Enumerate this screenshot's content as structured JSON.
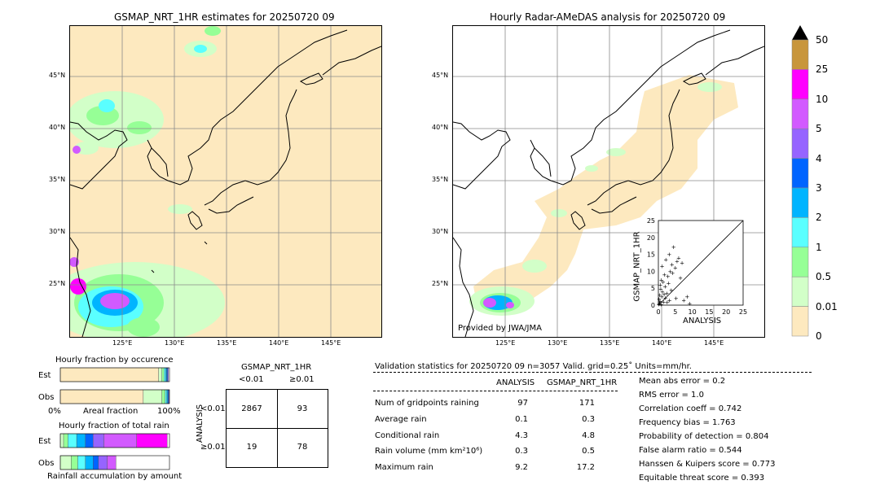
{
  "left_map": {
    "title": "GSMAP_NRT_1HR estimates for 20250720 09",
    "lat_labels": [
      "45°N",
      "40°N",
      "35°N",
      "30°N",
      "25°N"
    ],
    "lon_labels": [
      "125°E",
      "130°E",
      "135°E",
      "140°E",
      "145°E"
    ]
  },
  "right_map": {
    "title": "Hourly Radar-AMeDAS analysis for 20250720 09",
    "lat_labels": [
      "45°N",
      "40°N",
      "35°N",
      "30°N",
      "25°N"
    ],
    "lon_labels": [
      "125°E",
      "130°E",
      "135°E",
      "140°E",
      "145°E"
    ],
    "credit": "Provided by JWA/JMA"
  },
  "colorbar": {
    "labels": [
      "50",
      "25",
      "10",
      "5",
      "4",
      "3",
      "2",
      "1",
      "0.5",
      "0.01",
      "0"
    ],
    "colors": [
      "#c8963c",
      "#ff00ff",
      "#d25aff",
      "#9664ff",
      "#0064ff",
      "#00b4ff",
      "#5affff",
      "#96ff96",
      "#d2ffc8",
      "#fde9bf"
    ]
  },
  "chart_data": [
    {
      "type": "scatter",
      "title": "",
      "xlabel": "ANALYSIS",
      "ylabel": "GSMAP_NRT_1HR",
      "xlim": [
        0,
        25
      ],
      "ylim": [
        0,
        25
      ],
      "ticks": [
        "0",
        "5",
        "10",
        "15",
        "20",
        "25"
      ],
      "points": [
        [
          0.3,
          0.5
        ],
        [
          0.5,
          1.2
        ],
        [
          0.8,
          0.3
        ],
        [
          1.0,
          2.5
        ],
        [
          1.2,
          4.0
        ],
        [
          0.6,
          6.0
        ],
        [
          0.4,
          3.0
        ],
        [
          1.5,
          1.0
        ],
        [
          2.0,
          5.5
        ],
        [
          0.9,
          7.5
        ],
        [
          1.8,
          9.0
        ],
        [
          2.5,
          3.5
        ],
        [
          3.0,
          6.5
        ],
        [
          3.5,
          10.0
        ],
        [
          4.0,
          12.0
        ],
        [
          2.2,
          13.5
        ],
        [
          3.2,
          15.0
        ],
        [
          4.5,
          17.2
        ],
        [
          5.0,
          11.0
        ],
        [
          5.5,
          13.0
        ],
        [
          6.5,
          8.0
        ],
        [
          6.0,
          14.0
        ],
        [
          7.0,
          12.5
        ],
        [
          4.2,
          9.5
        ],
        [
          1.1,
          11.5
        ],
        [
          2.8,
          8.5
        ],
        [
          3.8,
          4.5
        ],
        [
          5.2,
          2.0
        ],
        [
          0.2,
          1.8
        ],
        [
          0.7,
          4.8
        ],
        [
          1.4,
          6.8
        ],
        [
          2.6,
          0.8
        ],
        [
          9.2,
          0.5
        ],
        [
          8.5,
          2.5
        ],
        [
          7.5,
          1.5
        ],
        [
          0.1,
          0.2
        ],
        [
          0.4,
          0.9
        ],
        [
          1.7,
          3.2
        ],
        [
          2.1,
          2.2
        ],
        [
          3.3,
          1.4
        ]
      ]
    },
    {
      "type": "bar",
      "title": "Hourly fraction by occurence",
      "categories": [
        "Est",
        "Obs"
      ],
      "xlabel": "Areal fraction",
      "tick_labels": [
        "0%",
        "100%"
      ],
      "series": [
        {
          "color": "#fde9bf",
          "values": [
            0.9,
            0.76
          ]
        },
        {
          "color": "#d2ffc8",
          "values": [
            0.03,
            0.17
          ]
        },
        {
          "color": "#96ff96",
          "values": [
            0.02,
            0.03
          ]
        },
        {
          "color": "#5affff",
          "values": [
            0.015,
            0.015
          ]
        },
        {
          "color": "#00b4ff",
          "values": [
            0.01,
            0.01
          ]
        },
        {
          "color": "#0064ff",
          "values": [
            0.008,
            0.008
          ]
        },
        {
          "color": "#9664ff",
          "values": [
            0.007,
            0.005
          ]
        }
      ]
    },
    {
      "type": "bar",
      "title": "Hourly fraction of total rain",
      "categories": [
        "Est",
        "Obs"
      ],
      "xlabel": "Rainfall accumulation by amount",
      "series": [
        {
          "color": "#d2ffc8",
          "values": [
            0.03,
            0.1
          ]
        },
        {
          "color": "#96ff96",
          "values": [
            0.04,
            0.06
          ]
        },
        {
          "color": "#5affff",
          "values": [
            0.08,
            0.07
          ]
        },
        {
          "color": "#00b4ff",
          "values": [
            0.08,
            0.07
          ]
        },
        {
          "color": "#0064ff",
          "values": [
            0.07,
            0.05
          ]
        },
        {
          "color": "#9664ff",
          "values": [
            0.1,
            0.08
          ]
        },
        {
          "color": "#d25aff",
          "values": [
            0.3,
            0.08
          ]
        },
        {
          "color": "#ff00ff",
          "values": [
            0.28,
            0.0
          ]
        }
      ]
    }
  ],
  "contingency": {
    "title": "GSMAP_NRT_1HR",
    "col_labels": [
      "<0.01",
      "≥0.01"
    ],
    "row_axis": "ANALYSIS",
    "row_labels": [
      "<0.01",
      "≥0.01"
    ],
    "cells": [
      [
        "2867",
        "93"
      ],
      [
        "19",
        "78"
      ]
    ]
  },
  "validation": {
    "header": "Validation statistics for 20250720 09  n=3057 Valid. grid=0.25˚ Units=mm/hr.",
    "col_analysis": "ANALYSIS",
    "col_gsmap": "GSMAP_NRT_1HR",
    "rows": [
      {
        "label": "Num of gridpoints raining",
        "analysis": "97",
        "gsmap": "171"
      },
      {
        "label": "Average rain",
        "analysis": "0.1",
        "gsmap": "0.3"
      },
      {
        "label": "Conditional rain",
        "analysis": "4.3",
        "gsmap": "4.8"
      },
      {
        "label": "Rain volume (mm km²10⁶)",
        "analysis": "0.3",
        "gsmap": "0.5"
      },
      {
        "label": "Maximum rain",
        "analysis": "9.2",
        "gsmap": "17.2"
      }
    ],
    "scores": [
      "Mean abs error =    0.2",
      "RMS error =    1.0",
      "Correlation coeff =  0.742",
      "Frequency bias =  1.763",
      "Probability of detection =  0.804",
      "False alarm ratio =  0.544",
      "Hanssen & Kuipers score =  0.773",
      "Equitable threat score =  0.393"
    ]
  }
}
